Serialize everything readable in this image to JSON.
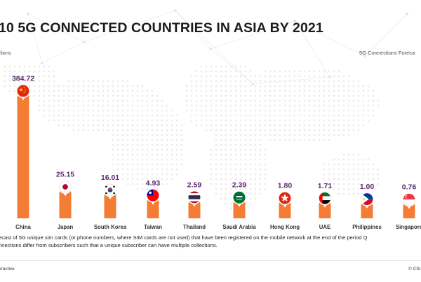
{
  "title": "10 5G CONNECTED COUNTRIES IN ASIA BY 2021",
  "y_unit_label": "illions",
  "legend_label": "5G Connections Foreca",
  "footnote_line1": "ecast of 5G unique sim cards (or phone numbers, where SIM cards are not used) that have been registered on the mobile network at the end of the period Q",
  "footnote_line2": "nnections differ from subscribers such that a unique subscriber can have multiple collections.",
  "brand_left": "eractive",
  "brand_right": "© CSI",
  "colors": {
    "bar": "#f47c35",
    "value_label": "#5a2a6b",
    "title": "#1c1c1c"
  },
  "chart_data": {
    "type": "bar",
    "title": "10 5G CONNECTED COUNTRIES IN ASIA BY 2021",
    "ylabel": "illions",
    "xlabel": "",
    "ylim": [
      0,
      400
    ],
    "categories": [
      "China",
      "Japan",
      "South Korea",
      "Taiwan",
      "Thailand",
      "Saudi Arabia",
      "Hong Kong",
      "UAE",
      "Philippines",
      "Singapore"
    ],
    "values": [
      384.72,
      25.15,
      16.01,
      4.93,
      2.59,
      2.39,
      1.8,
      1.71,
      1.0,
      0.76
    ],
    "value_labels": [
      "384.72",
      "25.15",
      "16.01",
      "4.93",
      "2.59",
      "2.39",
      "1.80",
      "1.71",
      "1.00",
      "0.76"
    ],
    "flag_icons": [
      "china-flag-icon",
      "japan-flag-icon",
      "south-korea-flag-icon",
      "taiwan-flag-icon",
      "thailand-flag-icon",
      "saudi-arabia-flag-icon",
      "hong-kong-flag-icon",
      "uae-flag-icon",
      "philippines-flag-icon",
      "singapore-flag-icon"
    ],
    "legend": [
      "5G Connections Foreca"
    ],
    "legend_position": "top-right",
    "grid": false
  }
}
